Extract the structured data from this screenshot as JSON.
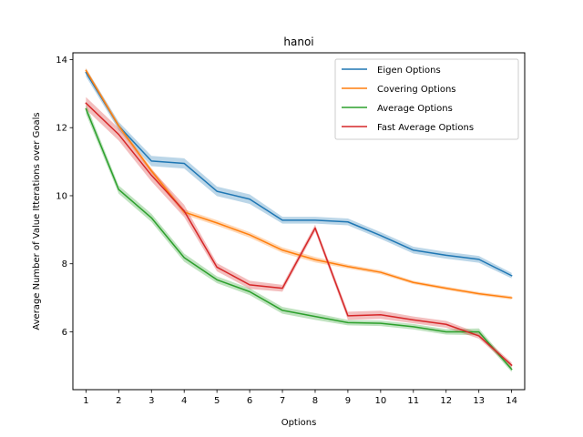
{
  "chart_data": {
    "type": "line",
    "title": "hanoi",
    "xlabel": "Options",
    "ylabel": "Average Number of Value Itterations over Goals",
    "x": [
      1,
      2,
      3,
      4,
      5,
      6,
      7,
      8,
      9,
      10,
      11,
      12,
      13,
      14
    ],
    "xlim": [
      0.6,
      14.4
    ],
    "ylim": [
      4.3,
      14.2
    ],
    "yticks": [
      6,
      8,
      10,
      12,
      14
    ],
    "legend_position": "upper right",
    "grid": false,
    "series": [
      {
        "name": "Eigen Options",
        "color": "#1f77b4",
        "values": [
          13.62,
          12.05,
          11.02,
          10.95,
          10.13,
          9.9,
          9.28,
          9.28,
          9.23,
          8.83,
          8.4,
          8.25,
          8.13,
          7.65
        ],
        "band": [
          0.12,
          0.12,
          0.15,
          0.15,
          0.14,
          0.14,
          0.1,
          0.1,
          0.1,
          0.1,
          0.1,
          0.1,
          0.1,
          0.08
        ]
      },
      {
        "name": "Covering Options",
        "color": "#ff7f0e",
        "values": [
          13.68,
          12.05,
          10.73,
          9.52,
          9.2,
          8.85,
          8.4,
          8.12,
          7.92,
          7.75,
          7.45,
          7.28,
          7.12,
          7.0
        ],
        "band": [
          0.08,
          0.08,
          0.08,
          0.08,
          0.08,
          0.08,
          0.08,
          0.08,
          0.06,
          0.06,
          0.05,
          0.05,
          0.05,
          0.05
        ]
      },
      {
        "name": "Average Options",
        "color": "#2ca02c",
        "values": [
          12.55,
          10.18,
          9.35,
          8.18,
          7.53,
          7.18,
          6.63,
          6.45,
          6.27,
          6.25,
          6.15,
          6.0,
          6.0,
          4.9
        ],
        "band": [
          0.15,
          0.12,
          0.12,
          0.12,
          0.1,
          0.1,
          0.1,
          0.1,
          0.08,
          0.08,
          0.08,
          0.08,
          0.1,
          0.08
        ]
      },
      {
        "name": "Fast Average Options",
        "color": "#d62728",
        "values": [
          12.72,
          11.8,
          10.6,
          9.55,
          7.9,
          7.38,
          7.28,
          9.05,
          6.47,
          6.5,
          6.35,
          6.22,
          5.88,
          5.02
        ],
        "band": [
          0.18,
          0.18,
          0.18,
          0.18,
          0.12,
          0.12,
          0.1,
          0.1,
          0.12,
          0.12,
          0.1,
          0.1,
          0.08,
          0.08
        ]
      }
    ]
  }
}
